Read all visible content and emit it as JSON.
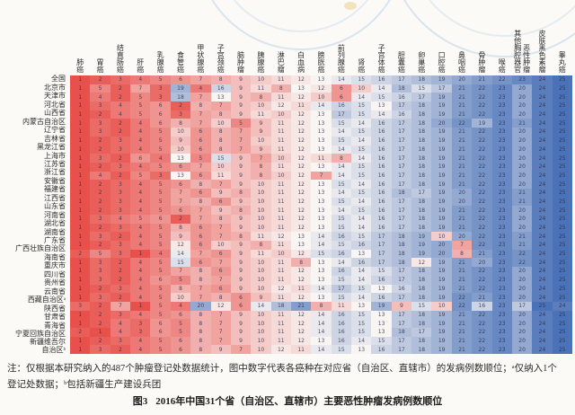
{
  "chart_data": {
    "type": "heatmap",
    "title": "2016年中国31个省（自治区、直辖市）主要恶性肿瘤发病例数顺位",
    "value_meaning": "图中数字代表各癌种在对应省（自治区、直辖市）的发病例数顺位（1=发病例数最多，红色；25=最少，蓝色）",
    "legend_position": "none",
    "color_scale": {
      "rank1": "#e8504b",
      "rank13": "#f8f5f3",
      "rank25": "#4a72b8"
    },
    "columns": [
      "肺癌",
      "胃癌",
      "结直肠癌",
      "肝癌",
      "乳腺癌",
      "食管癌",
      "甲状腺癌",
      "子宫颈癌",
      "脑肿瘤",
      "胰腺癌",
      "淋巴瘤",
      "白血病",
      "膀胱癌",
      "前列腺癌",
      "肾癌",
      "子宫体癌",
      "胆囊癌",
      "卵巢癌",
      "口腔癌",
      "鼻咽癌",
      "骨肿瘤",
      "喉癌",
      "其他胸腔器官恶性肿瘤",
      "皮肤黑色素瘤",
      "睾丸癌"
    ],
    "rows": [
      "全国",
      "北京市",
      "天津市",
      "河北省",
      "山西省",
      "内蒙古自治区",
      "辽宁省",
      "吉林省",
      "黑龙江省",
      "上海市",
      "江苏省",
      "浙江省",
      "安徽省",
      "福建省",
      "江西省",
      "山东省",
      "河南省",
      "湖北省",
      "湖南省",
      "广东省",
      "广西壮族自治区",
      "海南省",
      "重庆市",
      "四川省",
      "贵州省",
      "云南省",
      "西藏自治区ᵃ",
      "陕西省",
      "甘肃省",
      "青海省",
      "宁夏回族自治区",
      "新疆维吾尔自治区ᵇ"
    ],
    "values": [
      [
        1,
        2,
        3,
        4,
        5,
        6,
        7,
        8,
        9,
        10,
        11,
        12,
        13,
        14,
        15,
        16,
        17,
        18,
        19,
        20,
        21,
        22,
        23,
        24,
        25
      ],
      [
        1,
        5,
        2,
        7,
        3,
        19,
        4,
        16,
        9,
        11,
        8,
        13,
        12,
        6,
        10,
        14,
        18,
        15,
        17,
        21,
        22,
        23,
        20,
        24,
        25
      ],
      [
        1,
        4,
        2,
        5,
        3,
        18,
        7,
        13,
        9,
        8,
        11,
        12,
        10,
        6,
        14,
        15,
        16,
        17,
        19,
        21,
        22,
        23,
        20,
        24,
        25
      ],
      [
        1,
        3,
        4,
        5,
        6,
        2,
        8,
        7,
        9,
        10,
        12,
        11,
        14,
        16,
        15,
        13,
        17,
        18,
        19,
        21,
        22,
        23,
        20,
        24,
        25
      ],
      [
        1,
        2,
        4,
        5,
        6,
        3,
        7,
        8,
        9,
        11,
        10,
        12,
        13,
        17,
        15,
        14,
        16,
        18,
        19,
        21,
        22,
        23,
        20,
        24,
        25
      ],
      [
        1,
        3,
        2,
        4,
        6,
        8,
        7,
        10,
        5,
        9,
        11,
        12,
        13,
        15,
        14,
        16,
        17,
        18,
        20,
        22,
        19,
        23,
        21,
        24,
        25
      ],
      [
        1,
        3,
        2,
        4,
        5,
        10,
        6,
        8,
        7,
        9,
        11,
        12,
        13,
        14,
        15,
        16,
        17,
        18,
        19,
        21,
        22,
        23,
        20,
        24,
        25
      ],
      [
        1,
        2,
        3,
        4,
        5,
        9,
        6,
        8,
        7,
        10,
        11,
        12,
        13,
        15,
        14,
        16,
        17,
        18,
        19,
        21,
        22,
        23,
        20,
        24,
        25
      ],
      [
        1,
        2,
        3,
        4,
        5,
        10,
        6,
        8,
        7,
        9,
        11,
        12,
        13,
        14,
        15,
        16,
        17,
        18,
        19,
        21,
        22,
        23,
        20,
        24,
        25
      ],
      [
        1,
        3,
        2,
        6,
        4,
        13,
        5,
        15,
        9,
        7,
        10,
        12,
        11,
        8,
        14,
        16,
        17,
        18,
        19,
        21,
        22,
        23,
        20,
        24,
        25
      ],
      [
        1,
        2,
        3,
        4,
        5,
        6,
        7,
        10,
        9,
        8,
        11,
        12,
        13,
        14,
        15,
        16,
        17,
        18,
        19,
        21,
        22,
        23,
        20,
        24,
        25
      ],
      [
        1,
        4,
        2,
        5,
        3,
        13,
        6,
        11,
        9,
        8,
        10,
        12,
        7,
        14,
        15,
        16,
        17,
        18,
        19,
        21,
        22,
        23,
        20,
        24,
        25
      ],
      [
        1,
        2,
        3,
        4,
        5,
        6,
        8,
        7,
        9,
        10,
        11,
        12,
        13,
        15,
        14,
        16,
        17,
        18,
        19,
        21,
        22,
        23,
        20,
        24,
        25
      ],
      [
        1,
        2,
        3,
        4,
        5,
        7,
        6,
        9,
        8,
        10,
        11,
        12,
        13,
        14,
        15,
        16,
        18,
        17,
        19,
        20,
        22,
        23,
        21,
        24,
        25
      ],
      [
        1,
        2,
        3,
        4,
        5,
        7,
        8,
        6,
        9,
        10,
        11,
        12,
        13,
        15,
        14,
        16,
        17,
        18,
        19,
        20,
        22,
        23,
        21,
        24,
        25
      ],
      [
        1,
        2,
        3,
        4,
        5,
        6,
        7,
        9,
        8,
        10,
        11,
        12,
        13,
        14,
        15,
        16,
        17,
        18,
        19,
        21,
        22,
        23,
        20,
        24,
        25
      ],
      [
        1,
        3,
        4,
        5,
        6,
        2,
        7,
        8,
        9,
        10,
        11,
        12,
        13,
        15,
        14,
        16,
        17,
        18,
        19,
        21,
        22,
        23,
        20,
        24,
        25
      ],
      [
        1,
        2,
        3,
        4,
        5,
        8,
        6,
        7,
        9,
        10,
        11,
        12,
        13,
        15,
        14,
        16,
        17,
        18,
        19,
        21,
        22,
        23,
        20,
        24,
        25
      ],
      [
        1,
        3,
        2,
        4,
        5,
        9,
        6,
        7,
        8,
        11,
        12,
        13,
        14,
        16,
        15,
        17,
        18,
        19,
        10,
        20,
        22,
        23,
        21,
        24,
        25
      ],
      [
        1,
        2,
        3,
        4,
        5,
        12,
        6,
        10,
        9,
        8,
        11,
        13,
        14,
        15,
        16,
        17,
        18,
        19,
        20,
        7,
        22,
        23,
        21,
        24,
        25
      ],
      [
        2,
        5,
        3,
        1,
        4,
        14,
        7,
        6,
        9,
        11,
        10,
        12,
        15,
        16,
        13,
        17,
        18,
        19,
        20,
        8,
        21,
        23,
        22,
        24,
        25
      ],
      [
        1,
        3,
        2,
        4,
        5,
        15,
        6,
        7,
        9,
        10,
        11,
        8,
        13,
        14,
        16,
        17,
        18,
        12,
        19,
        21,
        20,
        23,
        22,
        24,
        25
      ],
      [
        1,
        3,
        2,
        4,
        5,
        7,
        8,
        6,
        9,
        10,
        11,
        12,
        13,
        16,
        14,
        15,
        17,
        18,
        19,
        21,
        22,
        23,
        20,
        24,
        25
      ],
      [
        1,
        3,
        2,
        4,
        6,
        5,
        8,
        7,
        9,
        10,
        11,
        12,
        13,
        15,
        14,
        16,
        17,
        18,
        19,
        21,
        22,
        23,
        20,
        24,
        25
      ],
      [
        1,
        2,
        3,
        4,
        5,
        8,
        7,
        6,
        9,
        10,
        12,
        11,
        14,
        17,
        15,
        13,
        16,
        18,
        19,
        21,
        22,
        23,
        20,
        24,
        25
      ],
      [
        1,
        3,
        2,
        4,
        5,
        10,
        7,
        8,
        6,
        9,
        11,
        12,
        13,
        15,
        14,
        16,
        17,
        18,
        19,
        22,
        21,
        23,
        20,
        24,
        25
      ],
      [
        3,
        2,
        7,
        1,
        5,
        4,
        20,
        12,
        6,
        14,
        18,
        21,
        8,
        11,
        13,
        19,
        9,
        15,
        10,
        22,
        16,
        23,
        17,
        25,
        24
      ],
      [
        1,
        2,
        3,
        4,
        5,
        6,
        8,
        7,
        9,
        10,
        11,
        12,
        14,
        16,
        15,
        13,
        17,
        18,
        19,
        21,
        22,
        23,
        20,
        24,
        25
      ],
      [
        1,
        2,
        4,
        3,
        6,
        5,
        8,
        7,
        9,
        10,
        11,
        12,
        14,
        16,
        15,
        13,
        17,
        18,
        19,
        21,
        22,
        23,
        20,
        24,
        25
      ],
      [
        2,
        1,
        4,
        3,
        6,
        5,
        8,
        7,
        9,
        10,
        11,
        12,
        14,
        16,
        15,
        13,
        18,
        17,
        19,
        21,
        22,
        23,
        20,
        24,
        25
      ],
      [
        1,
        2,
        3,
        4,
        5,
        6,
        8,
        7,
        9,
        10,
        11,
        12,
        13,
        16,
        14,
        15,
        17,
        18,
        19,
        21,
        22,
        23,
        20,
        24,
        25
      ],
      [
        1,
        3,
        2,
        4,
        5,
        6,
        8,
        9,
        7,
        10,
        12,
        11,
        14,
        15,
        13,
        16,
        17,
        18,
        19,
        21,
        22,
        23,
        20,
        24,
        25
      ]
    ]
  },
  "notes": {
    "text": "注：仅根据本研究纳入的487个肿瘤登记处数据统计，图中数字代表各癌种在对应省（自治区、直辖市）的发病例数顺位；ᵃ仅纳入1个登记处数据；ᵇ包括新疆生产建设兵团"
  },
  "caption": {
    "tag": "图3",
    "title": "2016年中国31个省（自治区、直辖市）主要恶性肿瘤发病例数顺位"
  }
}
